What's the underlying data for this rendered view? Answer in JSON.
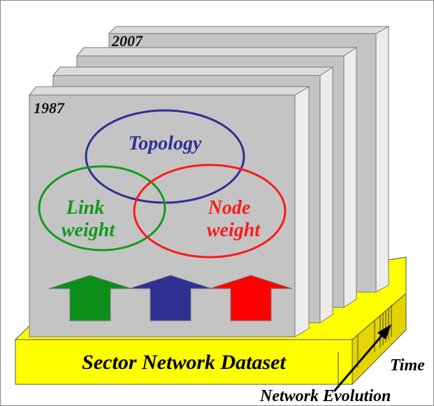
{
  "years": {
    "start": "1987",
    "end": "2007"
  },
  "venn": {
    "topology": "Topology",
    "link_weight": [
      "Link",
      "weight"
    ],
    "node_weight": [
      "Node",
      "weight"
    ]
  },
  "base_label": "Sector Network Dataset",
  "time_label": "Time",
  "evolution_label": "Network Evolution",
  "colors": {
    "topology": "#2e3192",
    "link": "#129a1c",
    "node": "#ff1a1a",
    "arrow_green": "#0b8f1a",
    "arrow_blue": "#2e3192",
    "arrow_red": "#ff0000",
    "base": "#ffff00",
    "slab_front": "#c4c4c4",
    "slab_side": "#d6d6d6"
  }
}
